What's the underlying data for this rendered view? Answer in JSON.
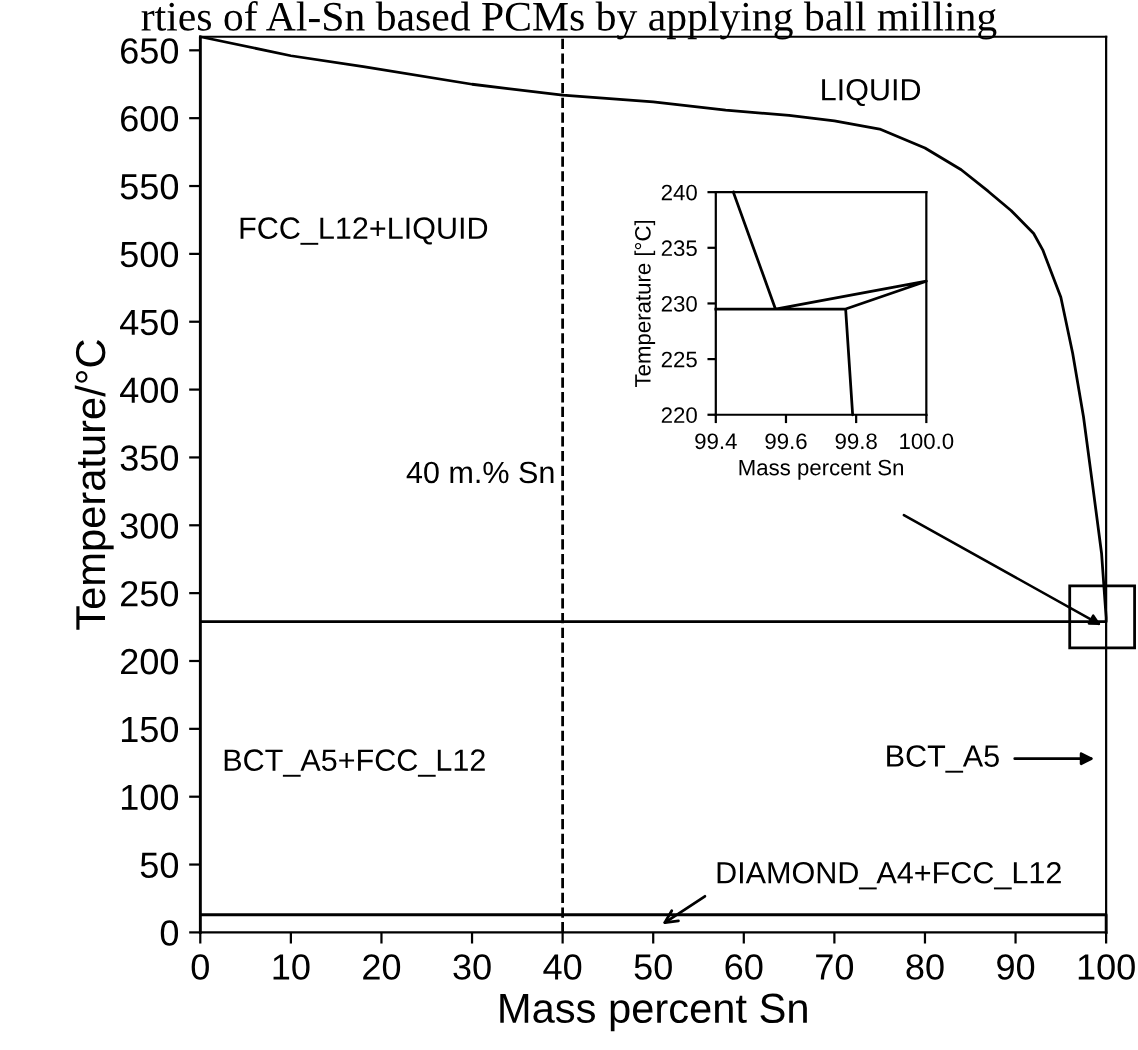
{
  "chart_data": [
    {
      "type": "line",
      "title": "rties of Al-Sn based PCMs by applying ball milling",
      "xlabel": "Mass percent Sn",
      "ylabel": "Temperature/°C",
      "xlim": [
        0,
        100
      ],
      "ylim": [
        0,
        660
      ],
      "xticks": [
        0,
        10,
        20,
        30,
        40,
        50,
        60,
        70,
        80,
        90,
        100
      ],
      "yticks": [
        0,
        50,
        100,
        150,
        200,
        250,
        300,
        350,
        400,
        450,
        500,
        550,
        600,
        650
      ],
      "marker": "none",
      "line_style": "solid",
      "series": [
        {
          "color": "#000000",
          "x": [
            0,
            0,
            10,
            18,
            30,
            40,
            50,
            58,
            65,
            70,
            75,
            80,
            84,
            87,
            89.5,
            92,
            93,
            95,
            96.3,
            97.5,
            98.5,
            99.5,
            100,
            100,
            0,
            0,
            100,
            100
          ],
          "values": [
            0,
            660,
            646,
            638,
            625,
            617,
            612,
            606,
            602,
            598,
            592,
            578,
            562,
            546,
            532,
            515,
            503,
            468,
            427,
            380,
            330,
            279,
            232,
            229,
            229,
            13,
            13,
            0
          ]
        }
      ],
      "ref_lines": [
        {
          "axis": "x",
          "value": 40,
          "label": "40 m.% Sn",
          "line_style": "dashed",
          "color": "#000000"
        }
      ],
      "annotations": [
        "LIQUID",
        "FCC_L12+LIQUID",
        "BCT_A5+FCC_L12",
        "BCT_A5",
        {
          "text": "DIAMOND_A4+FCC_L12",
          "x": 51,
          "y": 6
        }
      ]
    },
    {
      "type": "line",
      "xlabel": "Mass percent Sn",
      "ylabel": "Temperature [°C]",
      "xlim": [
        99.4,
        100.0
      ],
      "ylim": [
        220,
        240
      ],
      "xticks": [
        99.4,
        99.6,
        99.8,
        {
          "value": 100.0,
          "label": "100.0"
        }
      ],
      "yticks": [
        220,
        225,
        230,
        235,
        240
      ],
      "marker": "none",
      "line_style": "solid",
      "series": [
        {
          "color": "#000000",
          "x": [
            99.45,
            99.57,
            100.0,
            99.77,
            99.79,
            99.77,
            99.4
          ],
          "values": [
            240,
            229.5,
            232,
            229.5,
            220,
            229.5,
            229.5
          ]
        }
      ]
    }
  ]
}
